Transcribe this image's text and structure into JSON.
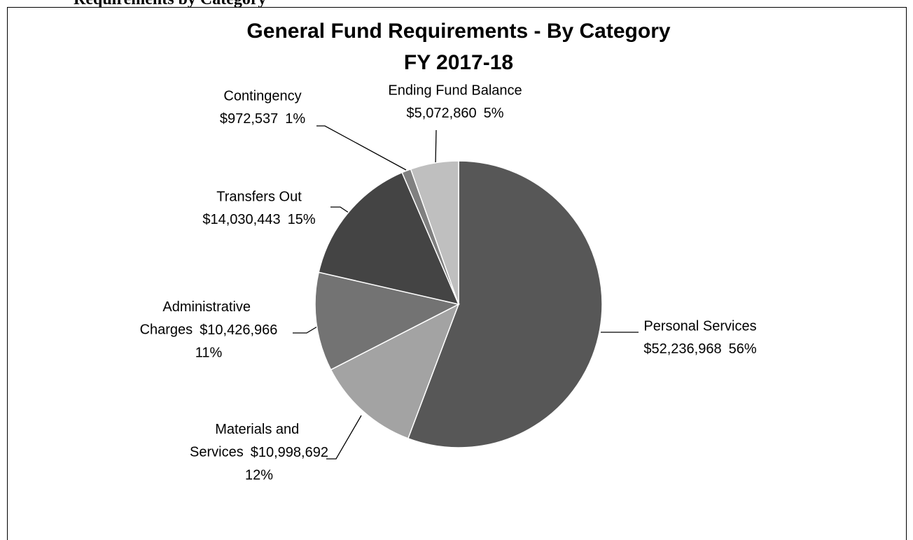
{
  "page_heading": "Requirements by Category",
  "chart_data": {
    "type": "pie",
    "title": [
      "General Fund Requirements - By Category",
      "FY 2017-18"
    ],
    "categories": [
      "Personal Services",
      "Materials and Services",
      "Administrative Charges",
      "Transfers Out",
      "Contingency",
      "Ending Fund Balance"
    ],
    "values": [
      52236968,
      10998692,
      10426966,
      14030443,
      972537,
      5072860
    ],
    "value_labels": [
      "$52,236,968",
      "$10,998,692",
      "$10,426,966",
      "$14,030,443",
      "$972,537",
      "$5,072,860"
    ],
    "percents": [
      56,
      12,
      11,
      15,
      1,
      5
    ],
    "percent_labels": [
      "56%",
      "12%",
      "11%",
      "15%",
      "1%",
      "5%"
    ],
    "colors": [
      "#575757",
      "#a3a3a3",
      "#737373",
      "#444444",
      "#808080",
      "#bfbfbf"
    ]
  }
}
